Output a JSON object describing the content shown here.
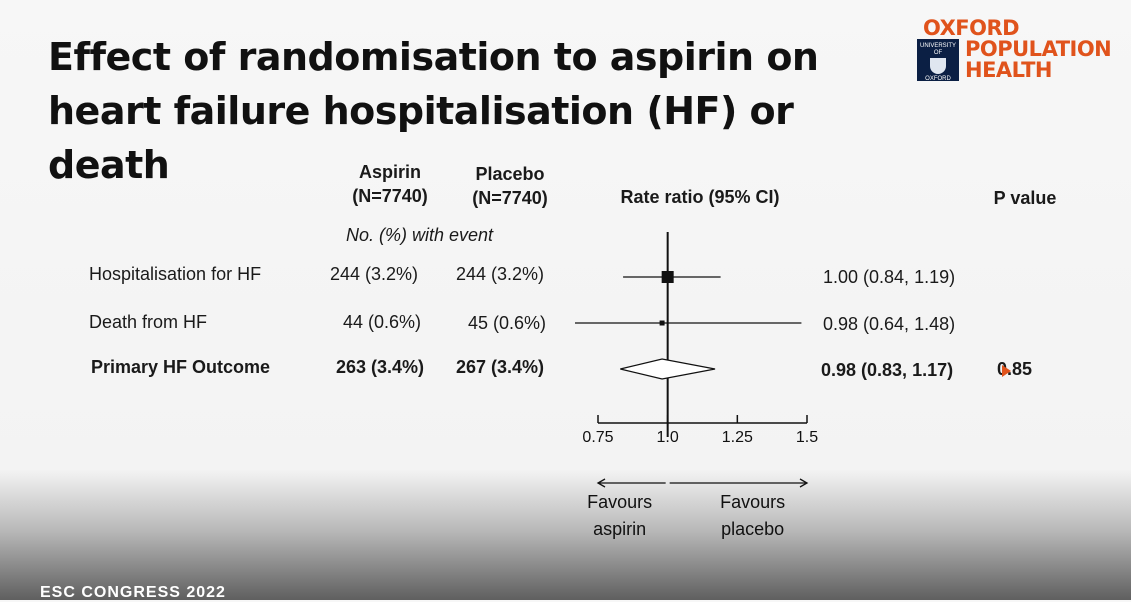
{
  "slide": {
    "title": "Effect of randomisation to aspirin on heart failure hospitalisation (HF) or death",
    "footer": "ESC CONGRESS 2022"
  },
  "logo": {
    "line1": "OXFORD",
    "line2": "POPULATION",
    "line3": "HEALTH",
    "crest_top": "UNIVERSITY OF",
    "crest_bottom": "OXFORD",
    "color": "#e0531c",
    "crest_color": "#0b1f44"
  },
  "columns": {
    "aspirin": "Aspirin",
    "aspirin_n": "(N=7740)",
    "placebo": "Placebo",
    "placebo_n": "(N=7740)",
    "rate_ratio": "Rate ratio (95% CI)",
    "p_value": "P value",
    "events_note": "No. (%) with event"
  },
  "rows": [
    {
      "label": "Hospitalisation for HF",
      "aspirin": "244 (3.2%)",
      "placebo": "244 (3.2%)",
      "ci_text": "1.00 (0.84, 1.19)",
      "p": "",
      "bold": false
    },
    {
      "label": "Death from HF",
      "aspirin": "44 (0.6%)",
      "placebo": "45 (0.6%)",
      "ci_text": "0.98 (0.64, 1.48)",
      "p": "",
      "bold": false
    },
    {
      "label": "Primary HF Outcome",
      "aspirin": "263 (3.4%)",
      "placebo": "267 (3.4%)",
      "ci_text": "0.98 (0.83, 1.17)",
      "p": "0.85",
      "bold": true
    }
  ],
  "chart_data": {
    "type": "forest",
    "xlim": [
      0.75,
      1.5
    ],
    "xticks": [
      0.75,
      1.0,
      1.25,
      1.5
    ],
    "xtick_labels": [
      "0.75",
      "1.0",
      "1.25",
      "1.5"
    ],
    "reference_line": 1.0,
    "estimates": [
      {
        "label": "Hospitalisation for HF",
        "estimate": 1.0,
        "lower": 0.84,
        "upper": 1.19,
        "marker": "square",
        "weight": "large"
      },
      {
        "label": "Death from HF",
        "estimate": 0.98,
        "lower": 0.64,
        "upper": 1.48,
        "marker": "square",
        "weight": "small"
      },
      {
        "label": "Primary HF Outcome",
        "estimate": 0.98,
        "lower": 0.83,
        "upper": 1.17,
        "marker": "diamond"
      }
    ],
    "favours_left": "Favours aspirin",
    "favours_left_lines": [
      "Favours",
      "aspirin"
    ],
    "favours_right": "Favours placebo",
    "favours_right_lines": [
      "Favours",
      "placebo"
    ]
  }
}
